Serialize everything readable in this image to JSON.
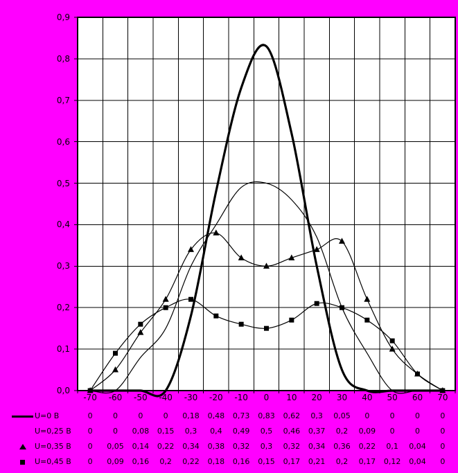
{
  "colors": {
    "background": "#FF00FF",
    "plot_background": "#FFFFFF",
    "grid": "#000000",
    "series_line": "#000000",
    "text": "#000000"
  },
  "chart_data": {
    "type": "line",
    "title": "",
    "xlabel": "",
    "ylabel": "",
    "grid": true,
    "legend_position": "bottom-table",
    "ylim": [
      0,
      0.9
    ],
    "y_tick_labels": [
      "0,0",
      "0,1",
      "0,2",
      "0,3",
      "0,4",
      "0,5",
      "0,6",
      "0,7",
      "0,8",
      "0,9"
    ],
    "categories": [
      -70,
      -60,
      -50,
      -40,
      -30,
      -20,
      -10,
      0,
      10,
      20,
      30,
      40,
      50,
      60,
      70
    ],
    "x_tick_labels": [
      "-70",
      "-60",
      "-50",
      "-40",
      "-30",
      "-20",
      "-10",
      "0",
      "10",
      "20",
      "30",
      "40",
      "50",
      "60",
      "70"
    ],
    "series": [
      {
        "name": "U=0 B",
        "marker": "none",
        "line_width": 3.2,
        "smooth": true,
        "values": [
          0,
          0,
          0,
          0,
          0.18,
          0.48,
          0.73,
          0.83,
          0.62,
          0.3,
          0.05,
          0,
          0,
          0,
          0
        ]
      },
      {
        "name": "U=0,25 B",
        "marker": "none",
        "line_width": 1.2,
        "smooth": true,
        "values": [
          0,
          0,
          0.08,
          0.15,
          0.3,
          0.4,
          0.49,
          0.5,
          0.46,
          0.37,
          0.2,
          0.09,
          0,
          0,
          0
        ]
      },
      {
        "name": "U=0,35 B",
        "marker": "triangle",
        "line_width": 1.2,
        "smooth": true,
        "values": [
          0,
          0.05,
          0.14,
          0.22,
          0.34,
          0.38,
          0.32,
          0.3,
          0.32,
          0.34,
          0.36,
          0.22,
          0.1,
          0.04,
          0
        ]
      },
      {
        "name": "U=0,45 B",
        "marker": "square",
        "line_width": 1.2,
        "smooth": true,
        "values": [
          0,
          0.09,
          0.16,
          0.2,
          0.22,
          0.18,
          0.16,
          0.15,
          0.17,
          0.21,
          0.2,
          0.17,
          0.12,
          0.04,
          0
        ]
      }
    ]
  },
  "table": {
    "rows": [
      {
        "key": "line",
        "label": "U=0 B",
        "values": [
          "0",
          "0",
          "0",
          "0",
          "0,18",
          "0,48",
          "0,73",
          "0,83",
          "0,62",
          "0,3",
          "0,05",
          "0",
          "0",
          "0",
          "0"
        ]
      },
      {
        "key": "none",
        "label": "U=0,25 B",
        "values": [
          "0",
          "0",
          "0,08",
          "0,15",
          "0,3",
          "0,4",
          "0,49",
          "0,5",
          "0,46",
          "0,37",
          "0,2",
          "0,09",
          "0",
          "0",
          "0"
        ]
      },
      {
        "key": "triangle",
        "label": "U=0,35 B",
        "values": [
          "0",
          "0,05",
          "0,14",
          "0,22",
          "0,34",
          "0,38",
          "0,32",
          "0,3",
          "0,32",
          "0,34",
          "0,36",
          "0,22",
          "0,1",
          "0,04",
          "0"
        ]
      },
      {
        "key": "square",
        "label": "U=0,45 B",
        "values": [
          "0",
          "0,09",
          "0,16",
          "0,2",
          "0,22",
          "0,18",
          "0,16",
          "0,15",
          "0,17",
          "0,21",
          "0,2",
          "0,17",
          "0,12",
          "0,04",
          "0"
        ]
      }
    ]
  }
}
